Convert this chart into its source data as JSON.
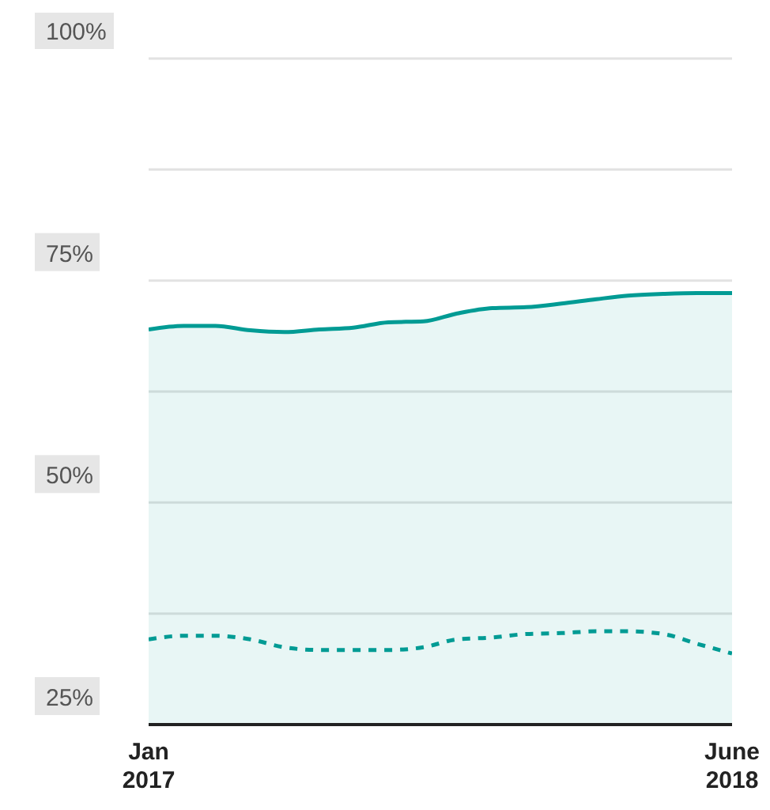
{
  "chart_data": {
    "type": "area",
    "x": [
      "2017-01",
      "2017-02",
      "2017-03",
      "2017-04",
      "2017-05",
      "2017-06",
      "2017-07",
      "2017-08",
      "2017-09",
      "2017-10",
      "2017-11",
      "2017-12",
      "2018-01",
      "2018-02",
      "2018-03",
      "2018-04",
      "2018-05",
      "2018-06"
    ],
    "xlim": [
      "2017-01",
      "2018-06"
    ],
    "xticks": [
      {
        "value": "2017-01",
        "label": "Jan 2017"
      },
      {
        "value": "2018-06",
        "label": "June 2018"
      }
    ],
    "series": [
      {
        "color": "#009b94",
        "line_style": "solid",
        "values": [
          69.5,
          69.9,
          69.9,
          69.4,
          69.2,
          69.5,
          69.7,
          70.3,
          70.4,
          71.3,
          71.9,
          72.0,
          72.4,
          72.9,
          73.3,
          73.5,
          73.6,
          73.6
        ]
      },
      {
        "type": "line",
        "color": "#009b94",
        "line_style": "dashed",
        "values": [
          34.6,
          35.0,
          35.0,
          34.6,
          33.7,
          33.4,
          33.4,
          33.4,
          33.7,
          34.6,
          34.8,
          35.2,
          35.3,
          35.5,
          35.5,
          35.2,
          34.1,
          33.0
        ]
      }
    ],
    "ylim": [
      25,
      100
    ],
    "yticks": [
      {
        "value": 25,
        "label": "25%"
      },
      {
        "value": 37.5,
        "label": null
      },
      {
        "value": 50,
        "label": "50%"
      },
      {
        "value": 62.5,
        "label": null
      },
      {
        "value": 75,
        "label": "75%"
      },
      {
        "value": 87.5,
        "label": null
      },
      {
        "value": 100,
        "label": "100%"
      }
    ],
    "grid": "y",
    "legend": false,
    "marker": "none"
  }
}
